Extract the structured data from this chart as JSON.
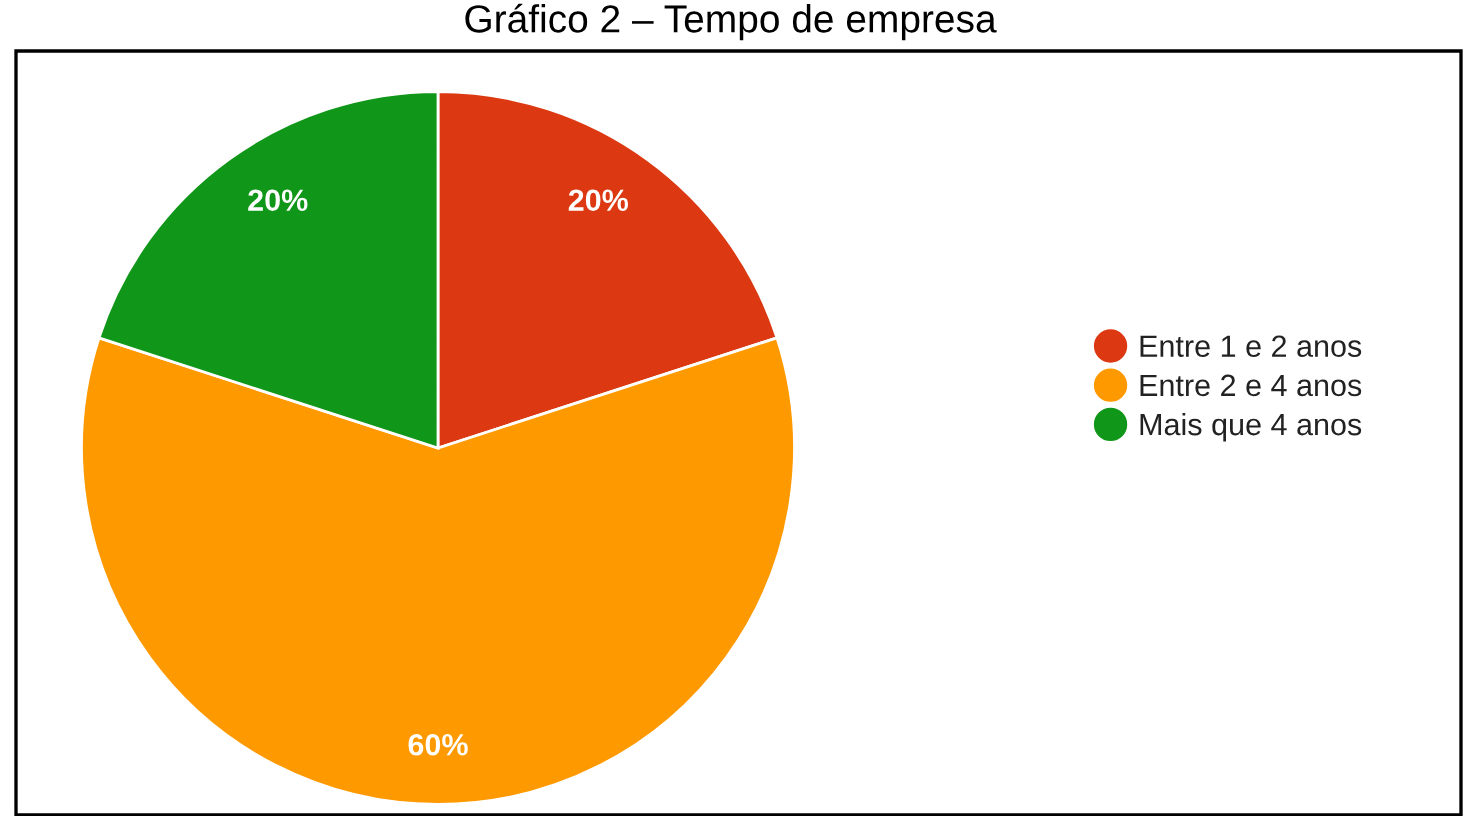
{
  "chart_data": {
    "type": "pie",
    "title": "Gráfico 2 – Tempo de empresa",
    "categories": [
      "Entre 1 e 2 anos",
      "Entre 2 e 4 anos",
      "Mais que 4 anos"
    ],
    "values": [
      20,
      60,
      20
    ],
    "colors": [
      "#dc3912",
      "#ff9900",
      "#109618"
    ],
    "value_labels": [
      "20%",
      "60%",
      "20%"
    ],
    "legend": "right"
  }
}
